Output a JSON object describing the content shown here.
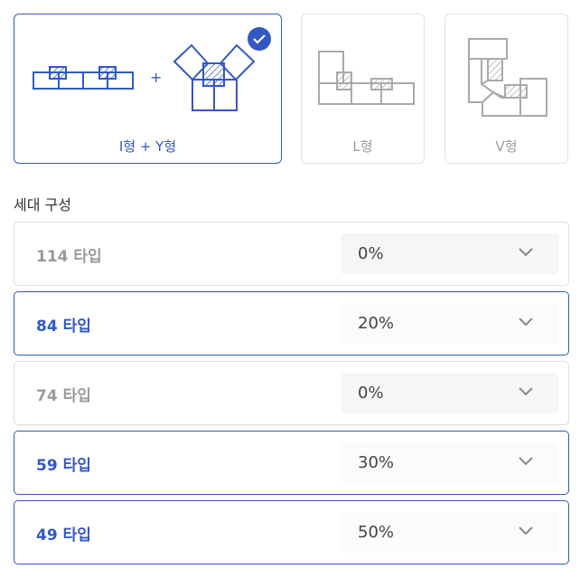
{
  "layouts": [
    {
      "label": "I형 + Y형",
      "selected": true,
      "icon": "i-plus-y-layout-icon"
    },
    {
      "label": "L형",
      "selected": false,
      "icon": "l-layout-icon"
    },
    {
      "label": "V형",
      "selected": false,
      "icon": "v-layout-icon"
    }
  ],
  "plus": "+",
  "section_title": "세대 구성",
  "units": [
    {
      "name": "114 타입",
      "value": "0%",
      "selected": false
    },
    {
      "name": "84 타입",
      "value": "20%",
      "selected": true
    },
    {
      "name": "74 타입",
      "value": "0%",
      "selected": false
    },
    {
      "name": "59 타입",
      "value": "30%",
      "selected": true
    },
    {
      "name": "49 타입",
      "value": "50%",
      "selected": true
    }
  ],
  "colors": {
    "accent": "#3358c4",
    "inactive": "#9a9a9a"
  }
}
